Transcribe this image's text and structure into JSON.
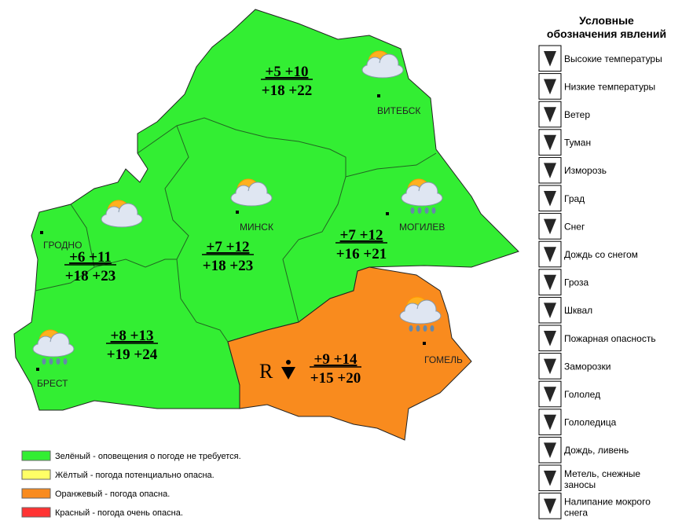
{
  "regions": [
    {
      "name": "ВИТЕБСК",
      "night": "+5 +10",
      "day": "+18 +22",
      "warning": "green"
    },
    {
      "name": "ГРОДНО",
      "night": "+6 +11",
      "day": "+18 +23",
      "warning": "green"
    },
    {
      "name": "МИНСК",
      "night": "+7 +12",
      "day": "+18 +23",
      "warning": "green"
    },
    {
      "name": "МОГИЛЕВ",
      "night": "+7 +12",
      "day": "+16 +21",
      "warning": "green"
    },
    {
      "name": "БРЕСТ",
      "night": "+8 +13",
      "day": "+19 +24",
      "warning": "green"
    },
    {
      "name": "ГОМЕЛЬ",
      "night": "+9 +14",
      "day": "+15 +20",
      "warning": "orange",
      "symbol": "R"
    }
  ],
  "warning_legend": [
    {
      "color": "#33ee33",
      "label": "Зелёный - оповещения о погоде не требуется."
    },
    {
      "color": "#ffff66",
      "label": "Жёлтый - погода потенциально опасна."
    },
    {
      "color": "#f98b1e",
      "label": "Оранжевый - погода опасна."
    },
    {
      "color": "#ff3333",
      "label": "Красный - погода очень опасна."
    }
  ],
  "phenomena_title": [
    "Условные",
    "обозначения явлений"
  ],
  "phenomena": [
    "Высокие температуры",
    "Низкие температуры",
    "Ветер",
    "Туман",
    "Изморозь",
    "Град",
    "Снег",
    "Дождь со снегом",
    "Гроза",
    "Шквал",
    "Пожарная опасность",
    "Заморозки",
    "Гололед",
    "Гололедица",
    "Дождь, ливень",
    "Метель, снежные заносы",
    "Налипание мокрого снега"
  ]
}
